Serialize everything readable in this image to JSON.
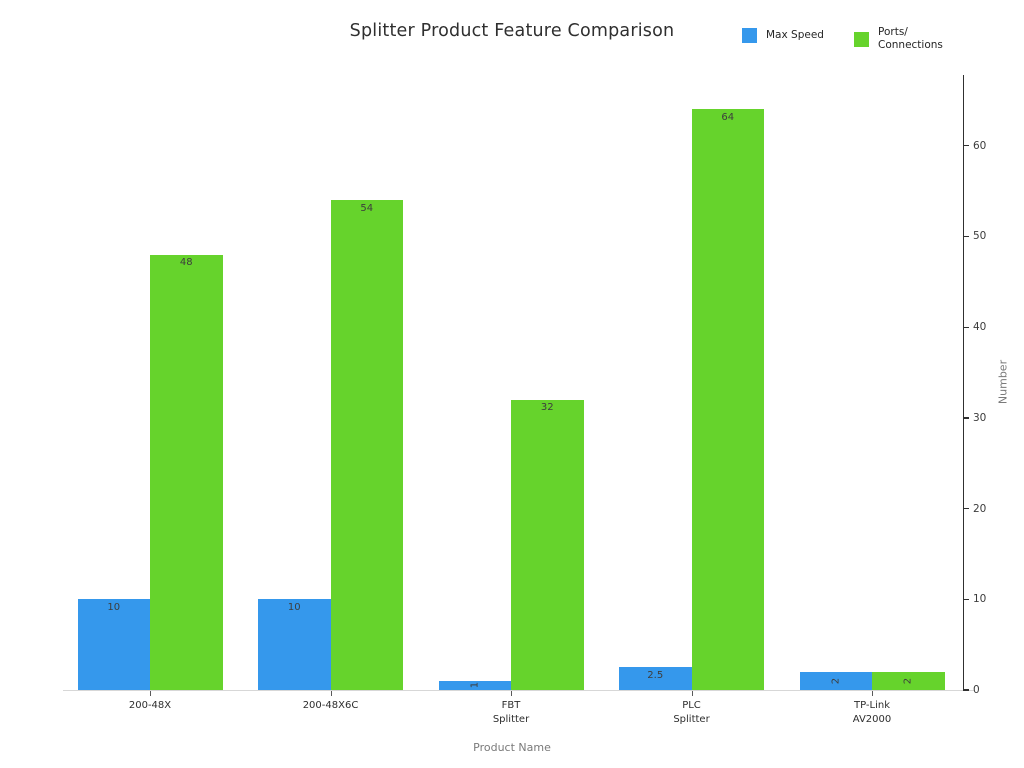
{
  "title": "Splitter Product Feature Comparison",
  "legend": [
    {
      "label": "Max Speed",
      "color": "#3598EC"
    },
    {
      "label": "Ports/\nConnections",
      "color": "#66D32C"
    }
  ],
  "chart_data": {
    "type": "bar",
    "title": "Splitter Product Feature Comparison",
    "categories": [
      "200-48X",
      "200-48X6C",
      "FBT\nSplitter",
      "PLC\nSplitter",
      "TP-Link\nAV2000"
    ],
    "series": [
      {
        "name": "Max Speed",
        "color": "#3598EC",
        "values": [
          10,
          10,
          1,
          2.5,
          2
        ],
        "labels": [
          "10",
          "10",
          "1",
          "2.5",
          "2"
        ],
        "label_rotated": [
          false,
          false,
          true,
          false,
          true
        ]
      },
      {
        "name": "Ports/Connections",
        "color": "#66D32C",
        "values": [
          48,
          54,
          32,
          64,
          2
        ],
        "labels": [
          "48",
          "54",
          "32",
          "64",
          "2"
        ],
        "label_rotated": [
          false,
          false,
          false,
          false,
          true
        ]
      }
    ],
    "xlabel": "Product Name",
    "ylabel": "Number",
    "ylim": [
      0,
      67.8
    ],
    "yticks": [
      0,
      10,
      20,
      30,
      40,
      50,
      60
    ],
    "grid": false,
    "legend_position": "top-right",
    "y_axis_side": "right"
  }
}
